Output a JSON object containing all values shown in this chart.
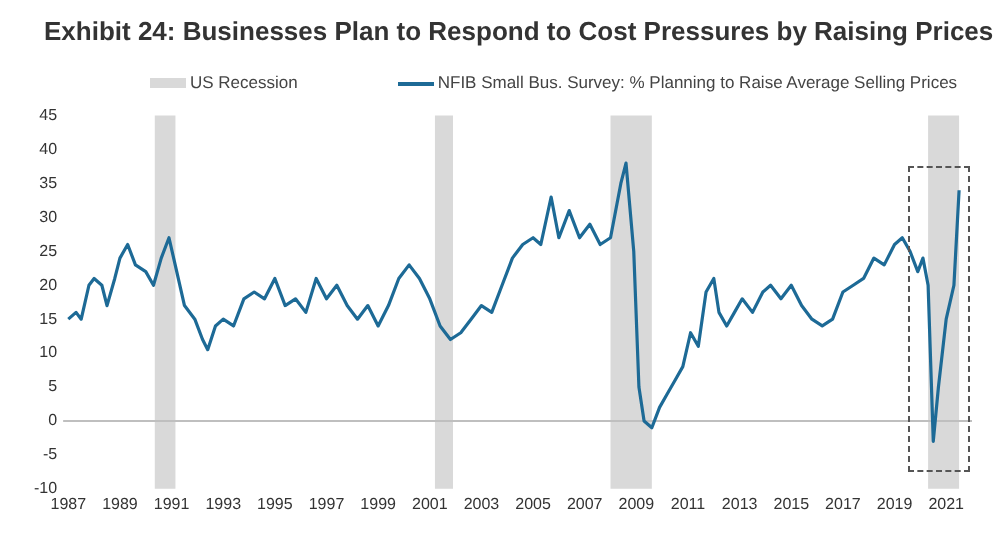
{
  "chart_data": {
    "type": "line",
    "title": "Exhibit 24:  Businesses Plan to Respond to Cost Pressures by Raising Prices",
    "series": [
      {
        "name": "NFIB Small Bus. Survey: % Planning to Raise Average Selling Prices",
        "color": "#1d6a96",
        "x": [
          1987.0,
          1987.3,
          1987.5,
          1987.8,
          1988.0,
          1988.3,
          1988.5,
          1988.8,
          1989.0,
          1989.3,
          1989.6,
          1990.0,
          1990.3,
          1990.6,
          1990.9,
          1991.2,
          1991.5,
          1991.9,
          1992.2,
          1992.4,
          1992.7,
          1993.0,
          1993.4,
          1993.8,
          1994.2,
          1994.6,
          1995.0,
          1995.4,
          1995.8,
          1996.2,
          1996.6,
          1997.0,
          1997.4,
          1997.8,
          1998.2,
          1998.6,
          1999.0,
          1999.4,
          1999.8,
          2000.2,
          2000.6,
          2001.0,
          2001.4,
          2001.8,
          2002.2,
          2002.6,
          2003.0,
          2003.4,
          2003.8,
          2004.2,
          2004.6,
          2005.0,
          2005.3,
          2005.7,
          2006.0,
          2006.4,
          2006.8,
          2007.2,
          2007.6,
          2008.0,
          2008.4,
          2008.6,
          2008.9,
          2009.1,
          2009.3,
          2009.6,
          2009.9,
          2010.2,
          2010.5,
          2010.8,
          2011.1,
          2011.4,
          2011.7,
          2012.0,
          2012.2,
          2012.5,
          2012.8,
          2013.1,
          2013.5,
          2013.9,
          2014.2,
          2014.6,
          2015.0,
          2015.4,
          2015.8,
          2016.2,
          2016.6,
          2017.0,
          2017.4,
          2017.8,
          2018.2,
          2018.6,
          2019.0,
          2019.3,
          2019.6,
          2019.9,
          2020.1,
          2020.3,
          2020.5,
          2020.7,
          2021.0,
          2021.3,
          2021.5
        ],
        "values": [
          15,
          16,
          15,
          20,
          21,
          20,
          17,
          21,
          24,
          26,
          23,
          22,
          20,
          24,
          27,
          22,
          17,
          15,
          12,
          10.5,
          14,
          15,
          14,
          18,
          19,
          18,
          21,
          17,
          18,
          16,
          21,
          18,
          20,
          17,
          15,
          17,
          14,
          17,
          21,
          23,
          21,
          18,
          14,
          12,
          13,
          15,
          17,
          16,
          20,
          24,
          26,
          27,
          26,
          33,
          27,
          31,
          27,
          29,
          26,
          27,
          35,
          38,
          25,
          5,
          0,
          -1,
          2,
          4,
          6,
          8,
          13,
          11,
          19,
          21,
          16,
          14,
          16,
          18,
          16,
          19,
          20,
          18,
          20,
          17,
          15,
          14,
          15,
          19,
          20,
          21,
          24,
          23,
          26,
          27,
          25,
          22,
          24,
          20,
          -3,
          5,
          15,
          20,
          34
        ]
      }
    ],
    "bands": [
      {
        "axis": "x",
        "from": 1990.35,
        "to": 1991.15,
        "label": "US Recession",
        "color": "#d9d9d9"
      },
      {
        "axis": "x",
        "from": 2001.2,
        "to": 2001.9,
        "color": "#d9d9d9"
      },
      {
        "axis": "x",
        "from": 2008.0,
        "to": 2009.6,
        "color": "#d9d9d9"
      },
      {
        "axis": "x",
        "from": 2020.3,
        "to": 2021.5,
        "color": "#d9d9d9"
      }
    ],
    "ref_lines": [
      {
        "axis": "y",
        "value": 0,
        "color": "#bfbfbf"
      }
    ],
    "xlim": [
      1986.8,
      2022
    ],
    "xticks": [
      1987,
      1989,
      1991,
      1993,
      1995,
      1997,
      1999,
      2001,
      2003,
      2005,
      2007,
      2009,
      2011,
      2013,
      2015,
      2017,
      2019,
      2021
    ],
    "ylim": [
      -10,
      45
    ],
    "yticks": [
      -10,
      -5,
      0,
      5,
      10,
      15,
      20,
      25,
      30,
      35,
      40,
      45
    ],
    "grid": false,
    "legend": "top",
    "marker": "none",
    "line_style": "solid"
  }
}
